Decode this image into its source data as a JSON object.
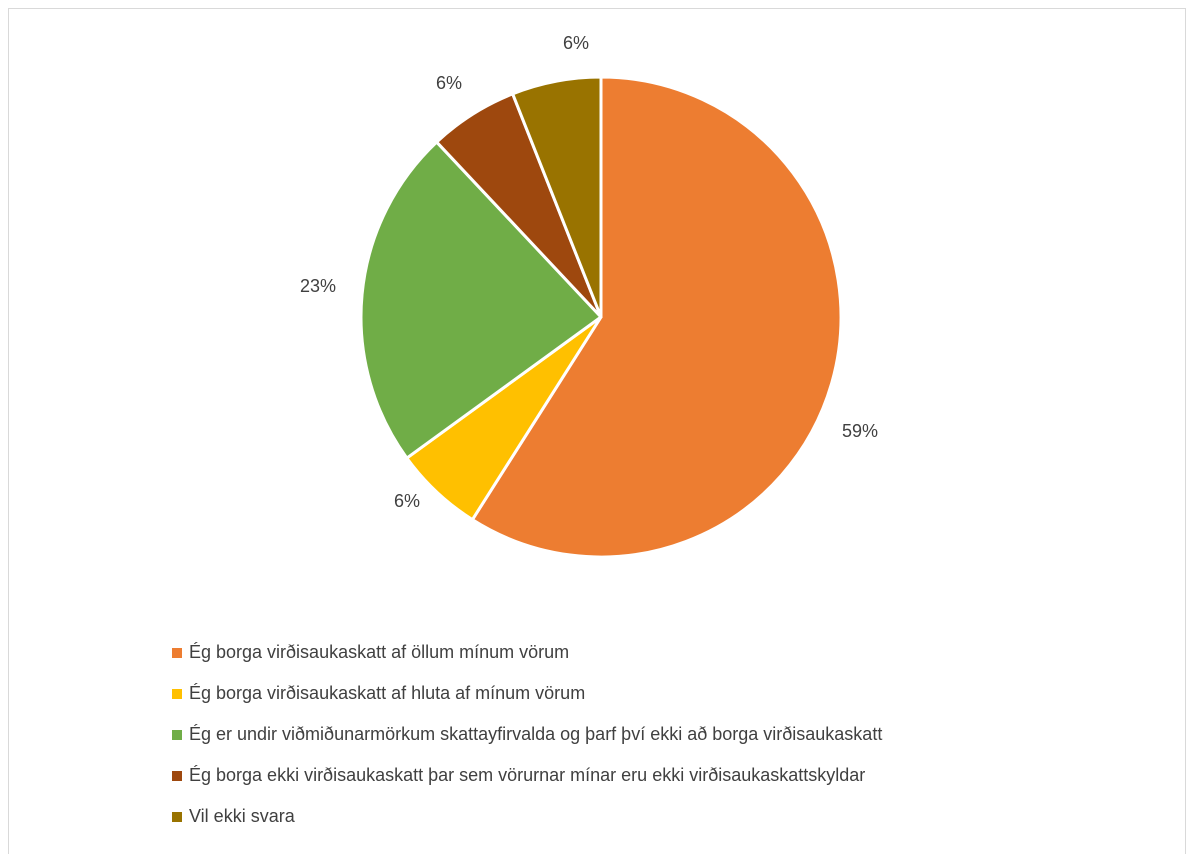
{
  "chart_data": {
    "type": "pie",
    "title": "",
    "start_angle_deg": 0,
    "direction": "clockwise",
    "slices": [
      {
        "label": "Ég borga virðisaukaskatt af öllum mínum vörum",
        "value": 59,
        "display": "59%",
        "color": "#ED7D31"
      },
      {
        "label": "Ég borga virðisaukaskatt af hluta af mínum vörum",
        "value": 6,
        "display": "6%",
        "color": "#FFC000"
      },
      {
        "label": "Ég er undir viðmiðunarmörkum skattayfirvalda og þarf því ekki að borga virðisaukaskatt",
        "value": 23,
        "display": "23%",
        "color": "#70AD47"
      },
      {
        "label": "Ég borga ekki virðisaukaskatt þar sem vörurnar mínar eru ekki virðisaukaskattskyldar",
        "value": 6,
        "display": "6%",
        "color": "#9E480E"
      },
      {
        "label": "Vil ekki svara",
        "value": 6,
        "display": "6%",
        "color": "#997300"
      }
    ],
    "legend_position": "bottom"
  }
}
